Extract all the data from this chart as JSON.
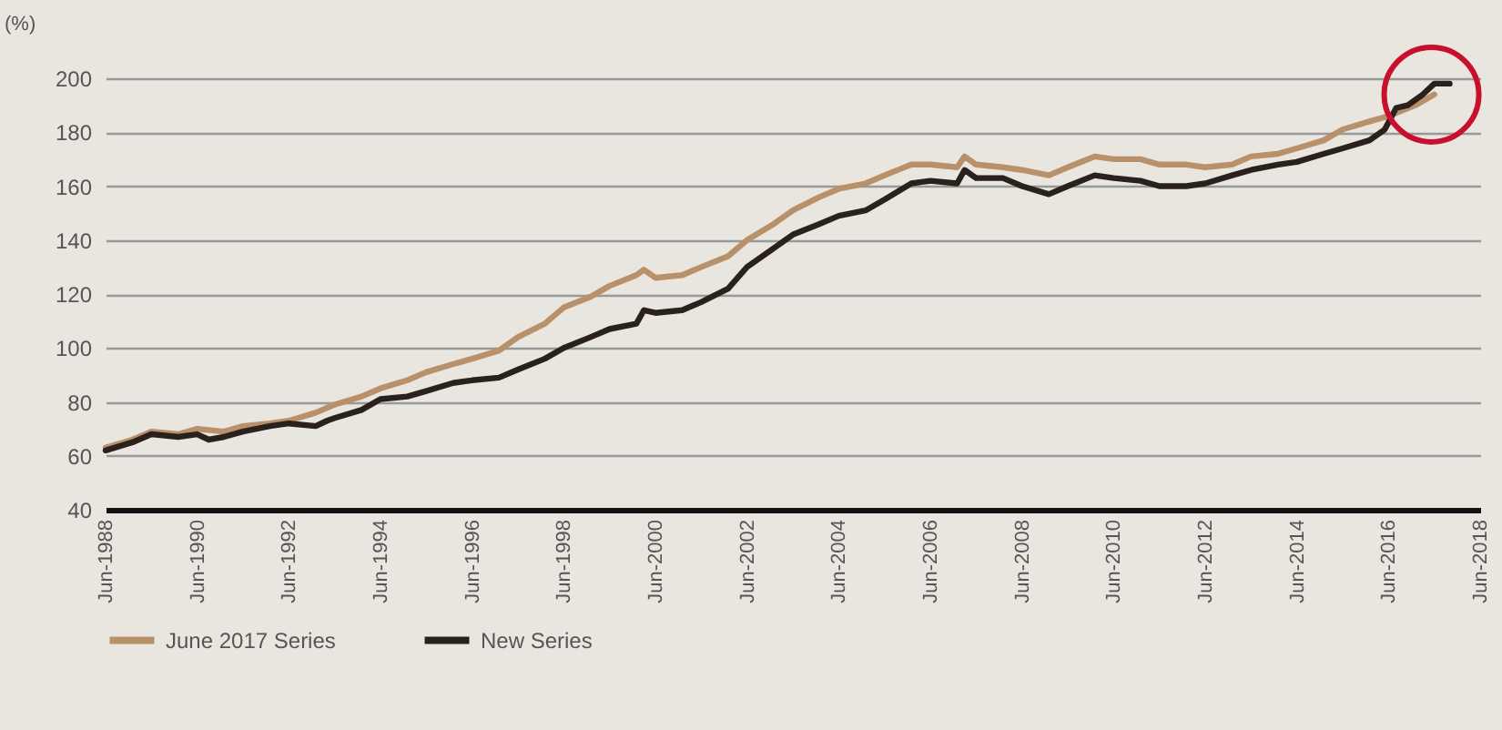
{
  "chart_data": {
    "type": "line",
    "ylabel": "(%)",
    "xlim": [
      "1988-06",
      "2018-06"
    ],
    "xticks": [
      {
        "value": "1988-06",
        "label": "Jun-1988"
      },
      {
        "value": "1990-06",
        "label": "Jun-1990"
      },
      {
        "value": "1992-06",
        "label": "Jun-1992"
      },
      {
        "value": "1994-06",
        "label": "Jun-1994"
      },
      {
        "value": "1996-06",
        "label": "Jun-1996"
      },
      {
        "value": "1998-06",
        "label": "Jun-1998"
      },
      {
        "value": "2000-06",
        "label": "Jun-2000"
      },
      {
        "value": "2002-06",
        "label": "Jun-2002"
      },
      {
        "value": "2004-06",
        "label": "Jun-2004"
      },
      {
        "value": "2006-06",
        "label": "Jun-2006"
      },
      {
        "value": "2008-06",
        "label": "Jun-2008"
      },
      {
        "value": "2010-06",
        "label": "Jun-2010"
      },
      {
        "value": "2012-06",
        "label": "Jun-2012"
      },
      {
        "value": "2014-06",
        "label": "Jun-2014"
      },
      {
        "value": "2016-06",
        "label": "Jun-2016"
      },
      {
        "value": "2018-06",
        "label": "Jun-2018"
      }
    ],
    "ylim": [
      40,
      200
    ],
    "yticks": [
      40,
      60,
      80,
      100,
      120,
      140,
      160,
      180,
      200
    ],
    "grid": "y",
    "legend": "bottom",
    "series": [
      {
        "name": "June 2017 Series",
        "color": "#b8906a",
        "x": [
          "1988-06",
          "1989-01",
          "1989-06",
          "1990-01",
          "1990-06",
          "1991-01",
          "1991-06",
          "1992-01",
          "1992-06",
          "1993-01",
          "1993-06",
          "1994-01",
          "1994-06",
          "1995-01",
          "1995-06",
          "1996-01",
          "1996-06",
          "1997-01",
          "1997-06",
          "1998-01",
          "1998-06",
          "1999-01",
          "1999-06",
          "2000-01",
          "2000-03",
          "2000-06",
          "2001-01",
          "2001-06",
          "2002-01",
          "2002-06",
          "2003-01",
          "2003-06",
          "2004-01",
          "2004-06",
          "2005-01",
          "2005-06",
          "2006-01",
          "2006-06",
          "2007-01",
          "2007-03",
          "2007-06",
          "2008-01",
          "2008-06",
          "2009-01",
          "2009-06",
          "2010-01",
          "2010-06",
          "2011-01",
          "2011-06",
          "2012-01",
          "2012-06",
          "2013-01",
          "2013-06",
          "2014-01",
          "2014-06",
          "2015-01",
          "2015-06",
          "2016-01",
          "2016-06",
          "2017-01",
          "2017-06"
        ],
        "values": [
          63,
          66,
          69,
          68,
          70,
          69,
          71,
          72,
          73,
          76,
          79,
          82,
          85,
          88,
          91,
          94,
          96,
          99,
          104,
          109,
          115,
          119,
          123,
          127,
          129,
          126,
          127,
          130,
          134,
          140,
          146,
          151,
          156,
          159,
          161,
          164,
          168,
          168,
          167,
          171,
          168,
          167,
          166,
          164,
          167,
          171,
          170,
          170,
          168,
          168,
          167,
          168,
          171,
          172,
          174,
          177,
          181,
          184,
          186,
          190,
          194
        ]
      },
      {
        "name": "New Series",
        "color": "#2a211c",
        "x": [
          "1988-06",
          "1989-01",
          "1989-06",
          "1990-01",
          "1990-06",
          "1990-09",
          "1991-01",
          "1991-06",
          "1992-01",
          "1992-06",
          "1993-01",
          "1993-04",
          "1993-06",
          "1994-01",
          "1994-06",
          "1995-01",
          "1995-06",
          "1996-01",
          "1996-06",
          "1997-01",
          "1997-06",
          "1998-01",
          "1998-06",
          "1999-01",
          "1999-06",
          "2000-01",
          "2000-03",
          "2000-06",
          "2001-01",
          "2001-06",
          "2002-01",
          "2002-06",
          "2003-01",
          "2003-06",
          "2004-01",
          "2004-06",
          "2005-01",
          "2005-06",
          "2006-01",
          "2006-06",
          "2007-01",
          "2007-03",
          "2007-06",
          "2008-01",
          "2008-06",
          "2009-01",
          "2009-06",
          "2010-01",
          "2010-06",
          "2011-01",
          "2011-06",
          "2012-01",
          "2012-06",
          "2013-01",
          "2013-06",
          "2014-01",
          "2014-06",
          "2015-01",
          "2015-06",
          "2016-01",
          "2016-05",
          "2016-08",
          "2016-11",
          "2017-03",
          "2017-06",
          "2017-10"
        ],
        "values": [
          62,
          65,
          68,
          67,
          68,
          66,
          67,
          69,
          71,
          72,
          71,
          73,
          74,
          77,
          81,
          82,
          84,
          87,
          88,
          89,
          92,
          96,
          100,
          104,
          107,
          109,
          114,
          113,
          114,
          117,
          122,
          130,
          137,
          142,
          146,
          149,
          151,
          155,
          161,
          162,
          161,
          166,
          163,
          163,
          160,
          157,
          160,
          164,
          163,
          162,
          160,
          160,
          161,
          164,
          166,
          168,
          169,
          172,
          174,
          177,
          181,
          189,
          190,
          194,
          198,
          198
        ]
      }
    ]
  }
}
